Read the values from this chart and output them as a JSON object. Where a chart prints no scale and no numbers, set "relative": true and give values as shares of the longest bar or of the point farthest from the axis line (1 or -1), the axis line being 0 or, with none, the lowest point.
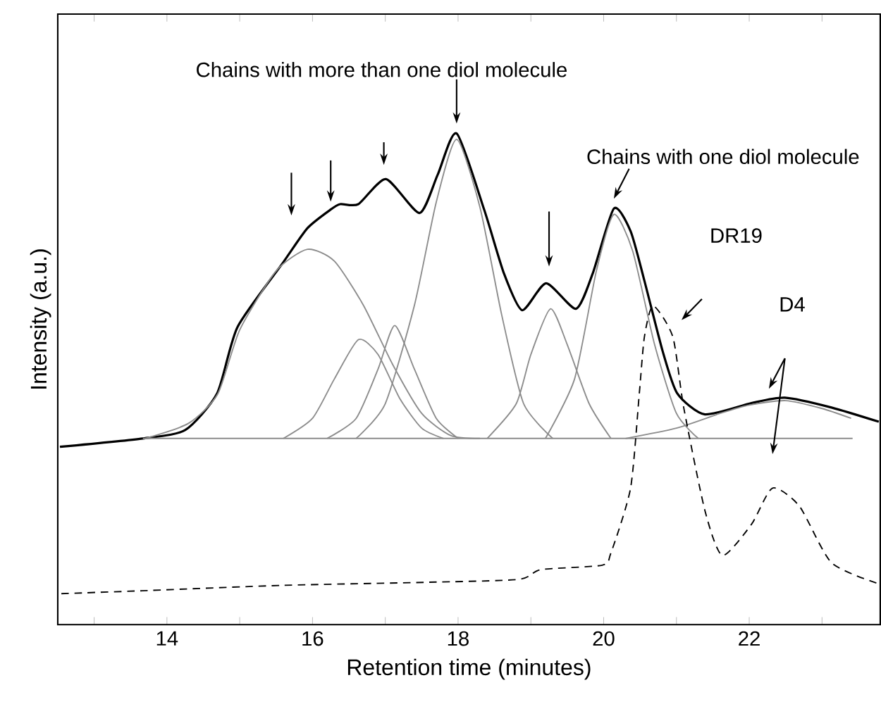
{
  "chart_data": {
    "type": "line",
    "xlabel": "Retention time (minutes)",
    "ylabel": "Intensity (a.u.)",
    "relative": true,
    "xlim": [
      12.5,
      23.8
    ],
    "xticks": [
      {
        "value": 13,
        "label": null
      },
      14,
      {
        "value": 15,
        "label": null
      },
      16,
      {
        "value": 17,
        "label": null
      },
      18,
      {
        "value": 19,
        "label": null
      },
      20,
      {
        "value": 21,
        "label": null
      },
      22,
      {
        "value": 23,
        "label": null
      }
    ],
    "marker": "none",
    "series": [
      {
        "color": "#000000",
        "line_style": "solid",
        "x": [
          12.53,
          13.67,
          14.25,
          14.69,
          14.97,
          15.6,
          15.93,
          16.24,
          16.38,
          16.63,
          17.01,
          17.47,
          17.72,
          17.98,
          18.36,
          18.63,
          18.88,
          19.21,
          19.62,
          19.85,
          20.14,
          20.37,
          20.56,
          20.81,
          21.01,
          21.39,
          22.03,
          22.49,
          23.13,
          23.78
        ],
        "values": [
          0.362,
          0.379,
          0.396,
          0.471,
          0.606,
          0.738,
          0.807,
          0.844,
          0.856,
          0.856,
          0.907,
          0.838,
          0.916,
          1.0,
          0.844,
          0.715,
          0.64,
          0.695,
          0.643,
          0.715,
          0.847,
          0.801,
          0.7,
          0.557,
          0.471,
          0.428,
          0.451,
          0.462,
          0.442,
          0.413
        ]
      },
      {
        "color": "#8c8c8c",
        "line_style": "solid",
        "x": [
          13.67,
          23.42
        ],
        "values": [
          0.379,
          0.379
        ]
      },
      {
        "color": "#8c8c8c",
        "line_style": "solid",
        "x": [
          13.7,
          14.3,
          14.7,
          15.0,
          15.5,
          15.93,
          16.3,
          16.7,
          17.1,
          17.5,
          17.9,
          18.3
        ],
        "values": [
          0.379,
          0.41,
          0.47,
          0.6,
          0.72,
          0.764,
          0.74,
          0.65,
          0.53,
          0.43,
          0.385,
          0.379
        ]
      },
      {
        "color": "#8c8c8c",
        "line_style": "solid",
        "x": [
          15.6,
          16.0,
          16.3,
          16.63,
          16.9,
          17.2,
          17.5,
          17.8
        ],
        "values": [
          0.379,
          0.42,
          0.5,
          0.58,
          0.55,
          0.46,
          0.4,
          0.379
        ]
      },
      {
        "color": "#8c8c8c",
        "line_style": "solid",
        "x": [
          16.2,
          16.6,
          16.9,
          17.13,
          17.4,
          17.7,
          18.0
        ],
        "values": [
          0.379,
          0.42,
          0.52,
          0.609,
          0.52,
          0.42,
          0.379
        ]
      },
      {
        "color": "#8c8c8c",
        "line_style": "solid",
        "x": [
          16.6,
          17.0,
          17.4,
          17.7,
          17.98,
          18.3,
          18.6,
          18.9,
          19.3
        ],
        "values": [
          0.379,
          0.45,
          0.65,
          0.86,
          0.988,
          0.85,
          0.63,
          0.45,
          0.379
        ]
      },
      {
        "color": "#8c8c8c",
        "line_style": "solid",
        "x": [
          18.4,
          18.8,
          19.0,
          19.27,
          19.5,
          19.8,
          20.1
        ],
        "values": [
          0.379,
          0.45,
          0.55,
          0.643,
          0.57,
          0.45,
          0.379
        ]
      },
      {
        "color": "#8c8c8c",
        "line_style": "solid",
        "x": [
          19.2,
          19.6,
          19.9,
          20.14,
          20.4,
          20.7,
          21.0,
          21.3
        ],
        "values": [
          0.379,
          0.5,
          0.72,
          0.835,
          0.76,
          0.57,
          0.43,
          0.379
        ]
      },
      {
        "color": "#8c8c8c",
        "line_style": "solid",
        "x": [
          20.3,
          21.0,
          21.6,
          22.0,
          22.5,
          23.0,
          23.4
        ],
        "values": [
          0.379,
          0.4,
          0.43,
          0.447,
          0.456,
          0.44,
          0.42
        ]
      },
      {
        "color": "#000000",
        "line_style": "dashed",
        "x": [
          12.55,
          13.67,
          15.6,
          17.53,
          18.83,
          19.14,
          19.98,
          20.1,
          20.37,
          20.49,
          20.56,
          20.68,
          20.95,
          21.1,
          21.39,
          21.63,
          22.03,
          22.32,
          22.69,
          23.13,
          23.78
        ],
        "values": [
          0.063,
          0.069,
          0.08,
          0.086,
          0.092,
          0.112,
          0.121,
          0.146,
          0.278,
          0.471,
          0.586,
          0.649,
          0.586,
          0.442,
          0.233,
          0.141,
          0.204,
          0.278,
          0.241,
          0.126,
          0.083
        ]
      }
    ],
    "annotations": [
      {
        "text": "Chains with more than one diol molecule",
        "x": 17.98,
        "y": 1.0
      },
      {
        "text": "Chains with one diol molecule",
        "x": 20.14,
        "y": 0.847
      },
      "DR19",
      "D4"
    ]
  }
}
